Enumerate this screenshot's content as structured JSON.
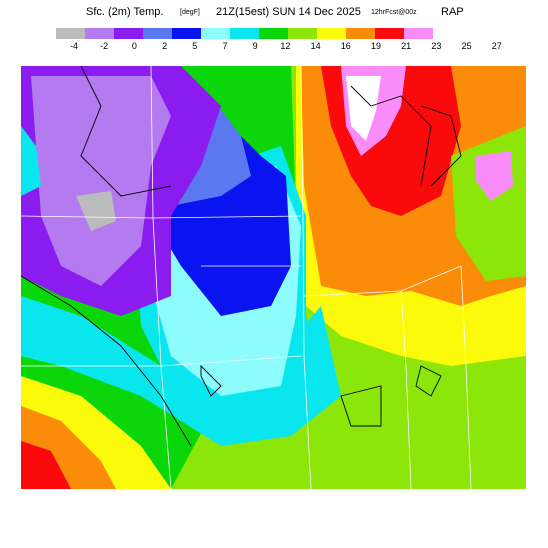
{
  "header": {
    "product": "Sfc. (2m) Temp.",
    "units": "[degF]",
    "time": "21Z(15est) SUN 14 Dec 2025",
    "forecast": "12hrFcst@00z",
    "model": "RAP"
  },
  "legend": {
    "colors": [
      "#bbbbbb",
      "#b47af0",
      "#8a1cf0",
      "#5a78f0",
      "#0a14f0",
      "#8cfcfc",
      "#0ae6ee",
      "#0ad60a",
      "#8ce60a",
      "#fafa0a",
      "#fa8c0a",
      "#fa0a0a",
      "#fa8cfa"
    ],
    "labels": [
      "-4",
      "-2",
      "0",
      "2",
      "5",
      "7",
      "9",
      "12",
      "14",
      "16",
      "19",
      "21",
      "23",
      "25",
      "27"
    ]
  },
  "map": {
    "type": "temperature-contour-map",
    "region_colors": {
      "gray": "#bbbbbb",
      "lavender": "#b47af0",
      "violet": "#8a1cf0",
      "cornflower": "#5a78f0",
      "blue": "#0a14f0",
      "lightcyan": "#8cfcfc",
      "cyan": "#0ae6ee",
      "green": "#0ad60a",
      "lime": "#8ce60a",
      "yellow": "#fafa0a",
      "orange": "#fa8c0a",
      "red": "#fa0a0a",
      "pink": "#fa8cfa",
      "white": "#ffffff"
    }
  }
}
